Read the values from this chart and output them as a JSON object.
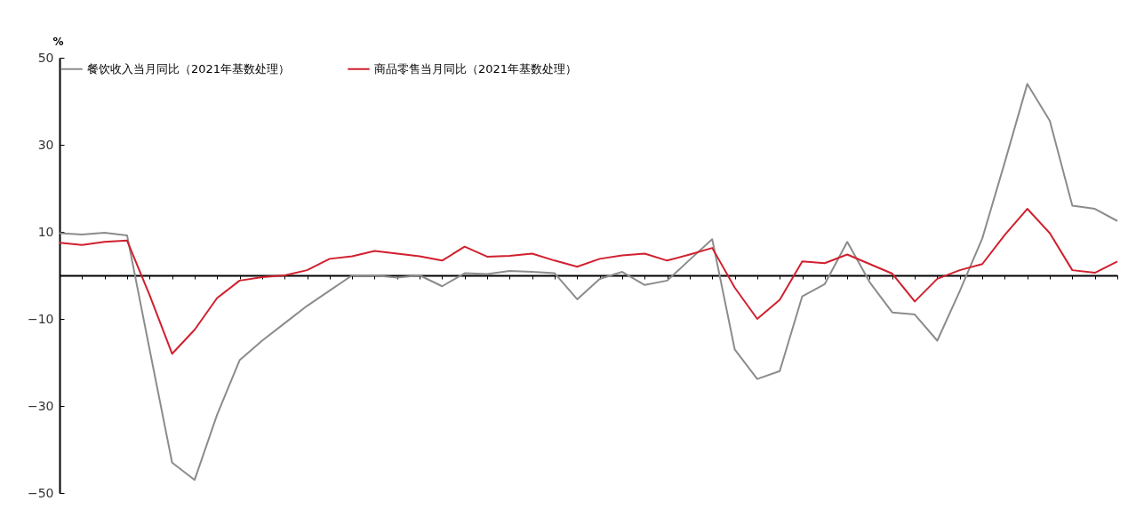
{
  "chart_data": {
    "type": "line",
    "ylabel": "%",
    "categories": [
      null,
      null,
      null,
      null,
      null,
      null,
      null,
      null,
      null,
      null,
      null,
      null,
      null,
      null,
      null,
      null,
      null,
      null,
      null,
      null,
      null,
      null,
      null,
      null,
      null,
      null,
      null,
      null,
      null,
      null,
      null,
      null,
      null,
      null,
      null,
      null,
      null,
      null,
      null,
      null,
      null,
      null,
      null,
      null,
      null,
      null,
      null,
      null
    ],
    "series": [
      {
        "name": "餐饮收入当月同比（2021年基数处理）",
        "color": "#8c8c8c",
        "values": [
          9.7,
          9.4,
          9.8,
          9.2,
          -17,
          -43,
          -47,
          -32,
          -19.5,
          -15,
          -11,
          -7,
          -3.5,
          0,
          0,
          -0.5,
          0,
          -2.5,
          0.5,
          0.3,
          1,
          0.8,
          0.5,
          -5.5,
          -0.8,
          0.8,
          -2.2,
          -1.2,
          3.6,
          8.3,
          -17,
          -23.8,
          -22,
          -4.8,
          -2,
          7.7,
          -1.6,
          -8.5,
          -9,
          -15,
          -3.6,
          8.5,
          26,
          44,
          35.5,
          16,
          15.3,
          12.5
        ]
      },
      {
        "name": "商品零售当月同比（2021年基数处理）",
        "color": "#d0202e",
        "values": [
          7.5,
          7,
          7.7,
          8,
          -4.5,
          -18,
          -12.5,
          -5.2,
          -1.2,
          -0.4,
          0,
          1.2,
          3.8,
          4.4,
          5.6,
          5,
          4.4,
          3.4,
          6.6,
          4.3,
          4.5,
          5,
          3.4,
          2,
          3.8,
          4.6,
          5,
          3.4,
          4.8,
          6.3,
          -2.8,
          -10,
          -5.6,
          3.2,
          2.8,
          4.8,
          2.6,
          0.4,
          -6,
          -0.8,
          1.2,
          2.6,
          9.3,
          15.3,
          9.7,
          1.2,
          0.6,
          3.2
        ]
      }
    ],
    "ylim": [
      -50,
      50
    ],
    "yticks": [
      -50,
      -30,
      -10,
      10,
      30,
      50
    ],
    "legend": "top",
    "line_style": "solid"
  }
}
